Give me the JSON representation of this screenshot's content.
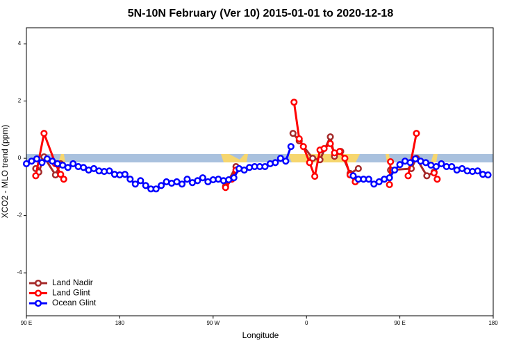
{
  "chart_data": {
    "type": "line",
    "title": "5N-10N February (Ver 10)   2015-01-01 to 2020-12-18",
    "x_label": "Longitude",
    "y_label": "XCO2 - MLO trend (ppm)",
    "xlim": [
      90,
      540
    ],
    "xticks": [
      {
        "value": 90,
        "label": "90 E"
      },
      180,
      {
        "value": 270,
        "label": "90 W"
      },
      {
        "value": 360,
        "label": "0"
      },
      {
        "value": 450,
        "label": "90 E"
      },
      180
    ],
    "ylim": [
      -5.5,
      4.56
    ],
    "yticks": [
      -4,
      -2,
      0,
      2,
      4
    ],
    "legend": "bottom-left",
    "series": [
      {
        "name": "Land Nadir",
        "color": "#a52a2a",
        "x": [
          99,
          102,
          107,
          118,
          123,
          null,
          282,
          292,
          null,
          347,
          353,
          366,
          373,
          383,
          387,
          393,
          402,
          410,
          null,
          441,
          461,
          466,
          476,
          483
        ],
        "values": [
          -0.36,
          -0.48,
          0.05,
          -0.58,
          -0.19,
          null,
          -0.97,
          -0.29,
          null,
          0.87,
          0.61,
          0.0,
          -0.05,
          0.75,
          0.07,
          0.24,
          -0.53,
          -0.36,
          null,
          -0.41,
          -0.36,
          0.0,
          -0.61,
          -0.48
        ]
      },
      {
        "name": "Land Glint",
        "color": "#ff0000",
        "x": [
          99,
          107,
          118,
          123,
          126,
          null,
          282,
          288,
          292,
          null,
          348,
          353,
          357,
          363,
          368,
          373,
          377,
          383,
          387,
          392,
          397,
          402,
          407,
          null,
          440,
          441,
          null,
          458,
          466,
          null,
          483,
          486
        ],
        "values": [
          -0.61,
          0.87,
          -0.19,
          -0.56,
          -0.73,
          null,
          -1.02,
          -0.73,
          -0.41,
          null,
          1.96,
          0.68,
          0.41,
          -0.15,
          -0.63,
          0.29,
          0.34,
          0.51,
          0.19,
          0.24,
          0.0,
          -0.58,
          -0.82,
          null,
          -0.92,
          -0.12,
          null,
          -0.61,
          0.87,
          null,
          -0.51,
          -0.73
        ]
      },
      {
        "name": "Ocean Glint",
        "color": "#0000ff",
        "x": [
          90,
          95,
          100,
          105,
          110,
          115,
          120,
          125,
          130,
          135,
          140,
          145,
          150,
          155,
          160,
          165,
          170,
          175,
          180,
          185,
          190,
          195,
          200,
          205,
          210,
          215,
          220,
          225,
          230,
          235,
          240,
          245,
          250,
          255,
          260,
          265,
          270,
          275,
          280,
          285,
          290,
          295,
          300,
          305,
          310,
          315,
          320,
          325,
          330,
          335,
          340,
          345,
          null,
          405,
          410,
          415,
          420,
          425,
          430,
          435,
          440,
          445,
          450,
          455,
          460,
          465,
          470,
          475,
          480,
          485,
          490,
          495,
          500,
          505,
          510,
          515,
          520,
          525,
          530,
          535
        ],
        "values": [
          -0.19,
          -0.1,
          -0.02,
          -0.15,
          -0.02,
          -0.1,
          -0.19,
          -0.24,
          -0.32,
          -0.19,
          -0.29,
          -0.32,
          -0.41,
          -0.36,
          -0.44,
          -0.46,
          -0.44,
          -0.56,
          -0.58,
          -0.56,
          -0.73,
          -0.9,
          -0.78,
          -0.95,
          -1.07,
          -1.07,
          -0.95,
          -0.82,
          -0.87,
          -0.82,
          -0.9,
          -0.73,
          -0.85,
          -0.78,
          -0.68,
          -0.82,
          -0.75,
          -0.73,
          -0.78,
          -0.75,
          -0.68,
          -0.36,
          -0.41,
          -0.32,
          -0.29,
          -0.29,
          -0.29,
          -0.19,
          -0.15,
          0.0,
          -0.1,
          0.41,
          null,
          -0.61,
          -0.73,
          -0.73,
          -0.73,
          -0.9,
          -0.82,
          -0.73,
          -0.68,
          -0.41,
          -0.22,
          -0.1,
          -0.15,
          -0.02,
          -0.1,
          -0.15,
          -0.24,
          -0.29,
          -0.19,
          -0.29,
          -0.29,
          -0.41,
          -0.36,
          -0.44,
          -0.46,
          -0.44,
          -0.56,
          -0.58
        ]
      }
    ]
  }
}
